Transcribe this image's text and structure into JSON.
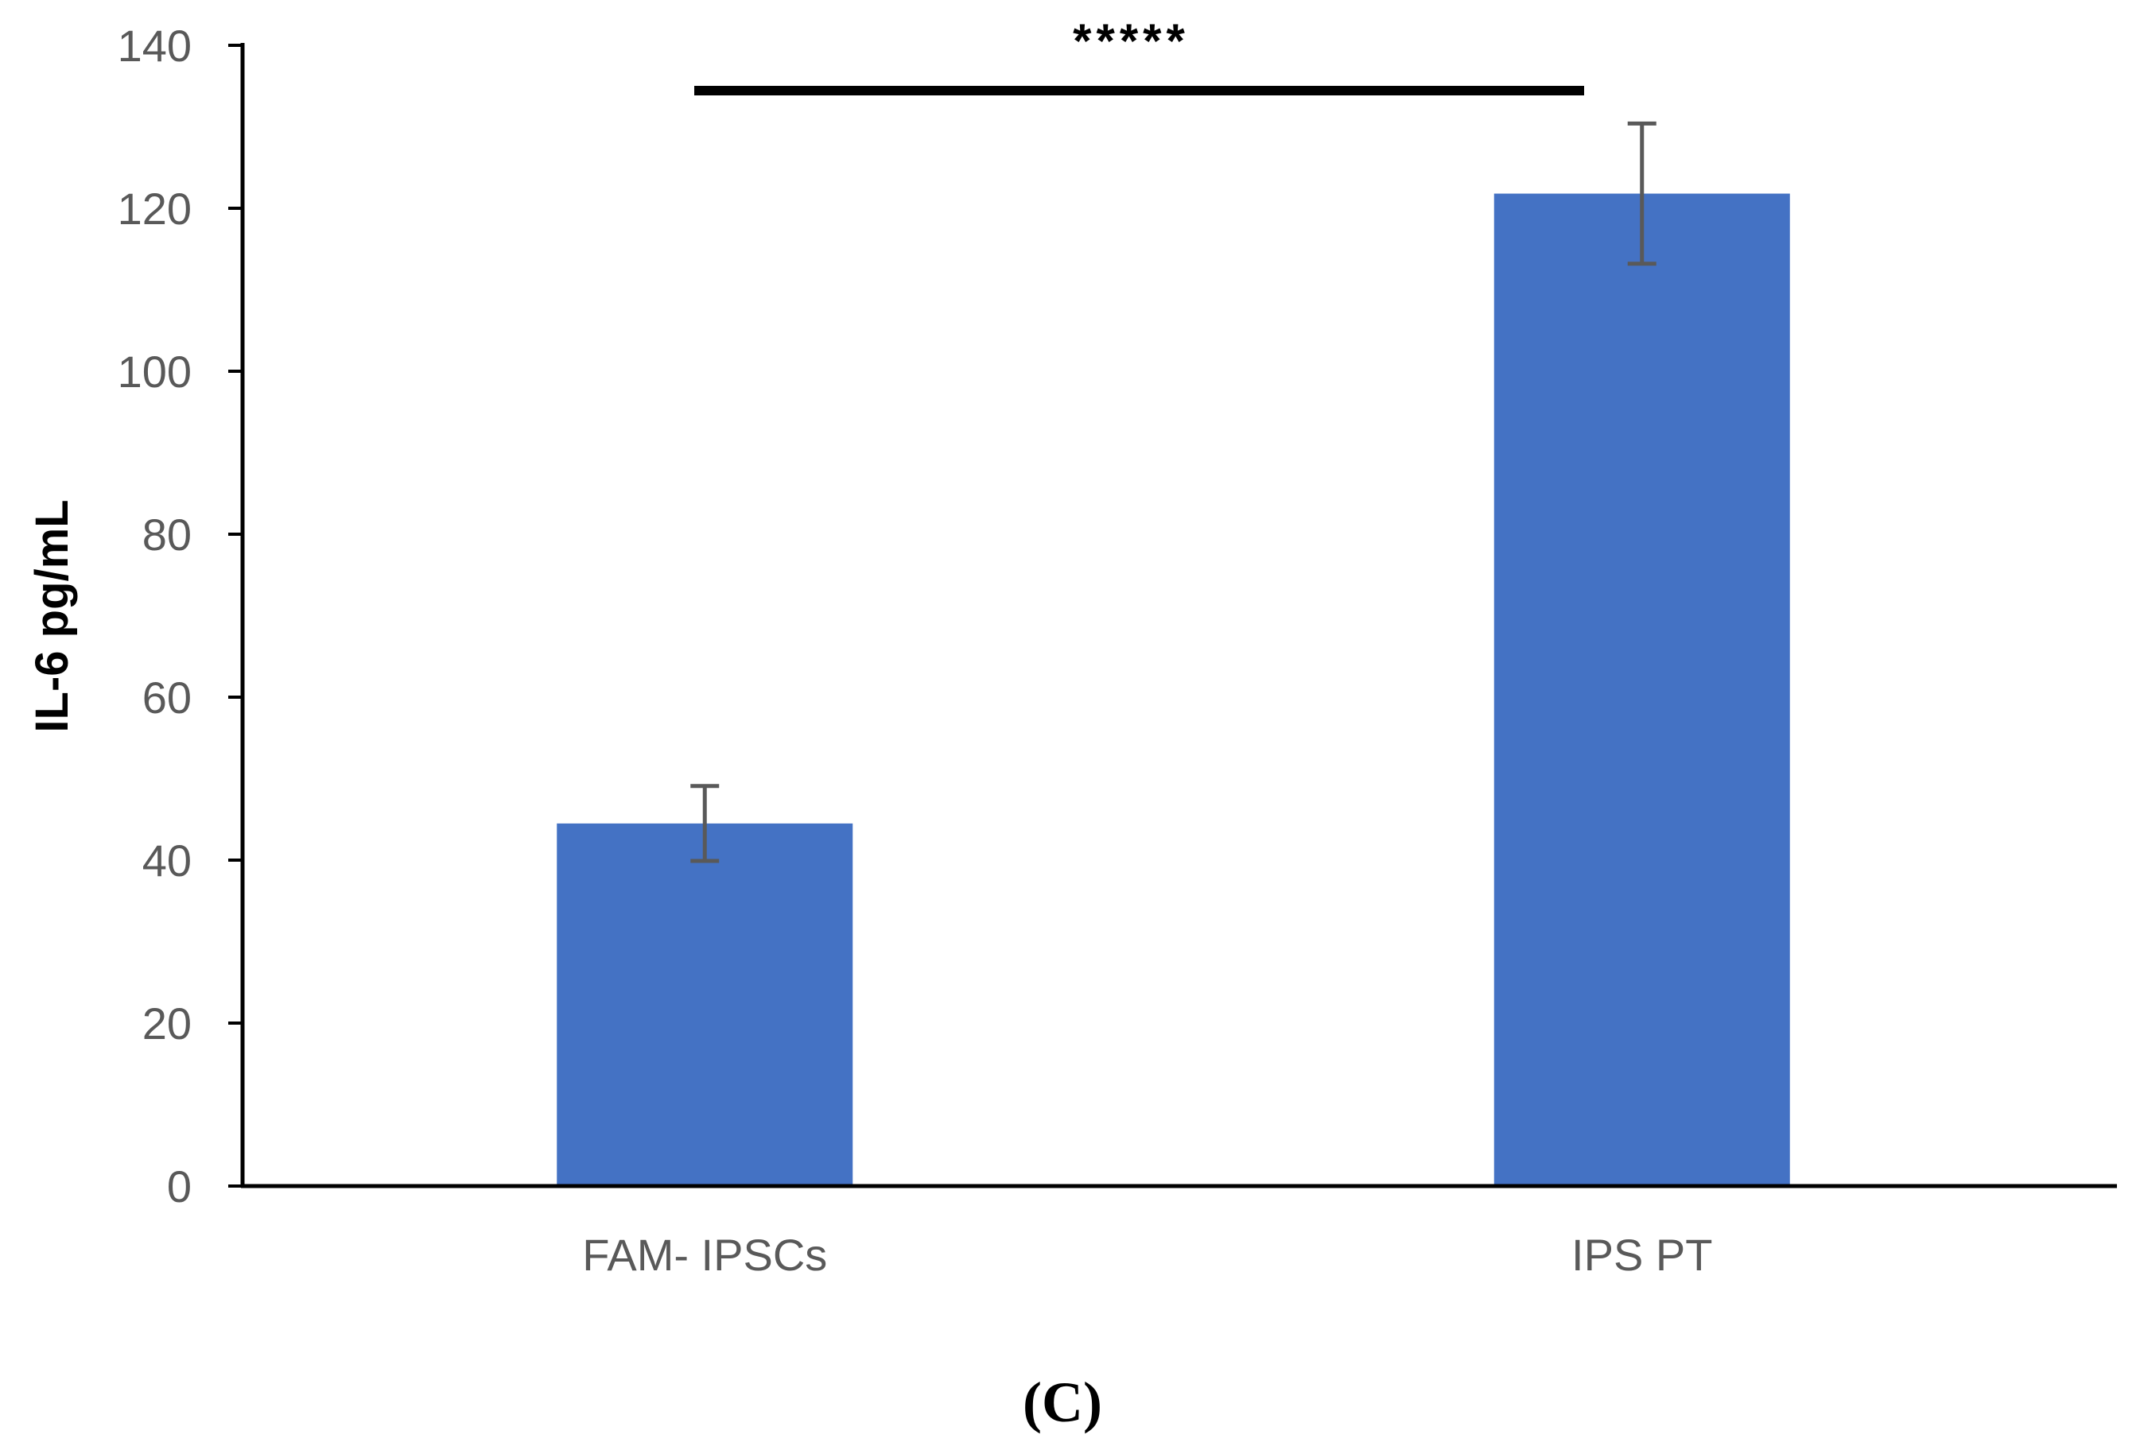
{
  "chart_data": {
    "type": "bar",
    "categories": [
      "FAM- IPSCs",
      "IPS PT"
    ],
    "values": [
      44.5,
      121.8
    ],
    "error": [
      4.6,
      8.6
    ],
    "ylabel": "IL-6 pg/mL",
    "xlabel": "",
    "ylim": [
      0,
      140
    ],
    "yticks": [
      0,
      20,
      40,
      60,
      80,
      100,
      120,
      140
    ],
    "grid": false,
    "bar_color": "#4472C4",
    "significance": {
      "between": [
        "FAM- IPSCs",
        "IPS PT"
      ],
      "label": "*****"
    },
    "panel_label": "(C)"
  }
}
